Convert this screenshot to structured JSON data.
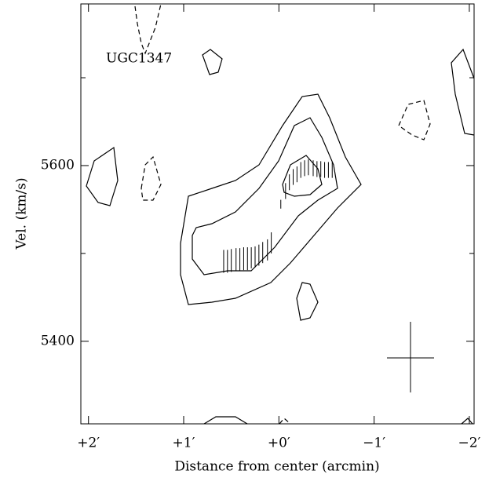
{
  "chart_data": {
    "type": "pv-diagram",
    "annotation": "UGC1347",
    "xlabel": "Distance from center (arcmin)",
    "ylabel": "Vel. (km/s)",
    "xlim": [
      2.08,
      -2.05
    ],
    "ylim": [
      5306,
      5784
    ],
    "xticks": [
      {
        "value": 2,
        "label": "+2′"
      },
      {
        "value": 1,
        "label": "+1′"
      },
      {
        "value": 0,
        "label": "+0′"
      },
      {
        "value": -1,
        "label": "−1′"
      },
      {
        "value": -2,
        "label": "−2′"
      }
    ],
    "yticks": [
      5400,
      5600
    ],
    "yminorticks": [
      5500,
      5700
    ],
    "color": "#000000",
    "x": [
      0.58,
      0.54,
      0.5,
      0.45,
      0.41,
      0.37,
      0.33,
      0.29,
      0.25,
      0.21,
      0.17,
      0.12,
      0.08,
      -0.02,
      -0.07,
      -0.11,
      -0.15,
      -0.19,
      -0.23,
      -0.27,
      -0.31,
      -0.36,
      -0.4,
      -0.44,
      -0.48,
      -0.52,
      -0.56
    ],
    "values": [
      5491,
      5491,
      5492,
      5493,
      5493,
      5494,
      5494,
      5495,
      5496,
      5498,
      5501,
      5504,
      5512,
      5556,
      5571,
      5581,
      5587,
      5590,
      5595,
      5597,
      5598,
      5597,
      5596,
      5596,
      5595,
      5595,
      5595
    ],
    "errors": [
      13,
      13,
      13,
      13,
      13,
      13,
      13,
      12,
      12,
      12,
      12,
      12,
      12,
      5,
      9,
      9,
      9,
      9,
      9,
      9,
      9,
      9,
      9,
      9,
      9,
      9,
      9
    ]
  }
}
